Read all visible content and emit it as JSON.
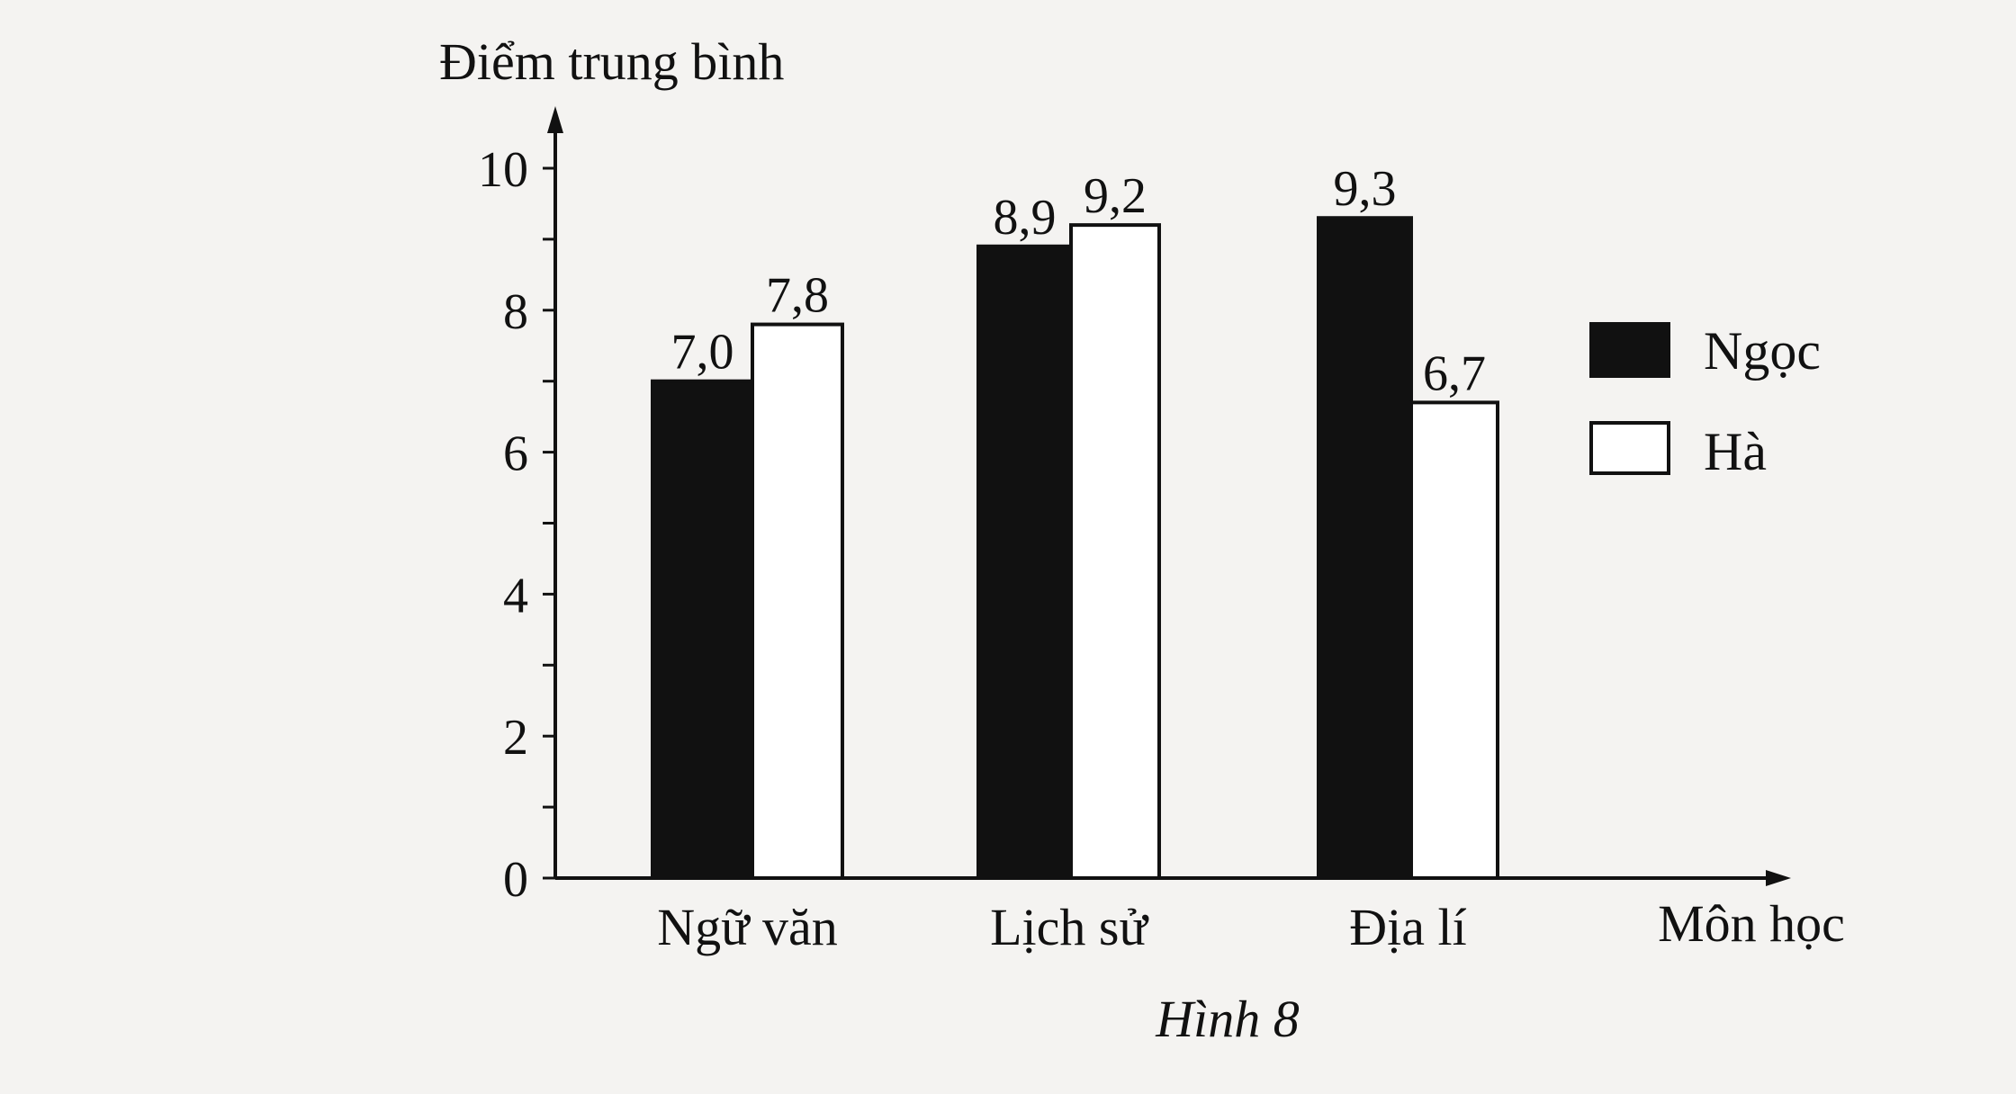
{
  "chart_data": {
    "type": "bar",
    "ylabel": "Điểm trung bình",
    "xlabel": "Môn học",
    "caption": "Hình 8",
    "categories": [
      "Ngữ văn",
      "Lịch sử",
      "Địa lí"
    ],
    "series": [
      {
        "name": "Ngọc",
        "values": [
          7.0,
          8.9,
          9.3
        ],
        "labels": [
          "7,0",
          "8,9",
          "9,3"
        ],
        "color": "#111111"
      },
      {
        "name": "Hà",
        "values": [
          7.8,
          9.2,
          6.7
        ],
        "labels": [
          "7,8",
          "9,2",
          "6,7"
        ],
        "color": "#ffffff"
      }
    ],
    "ylim": [
      0,
      10
    ],
    "yticks": [
      0,
      2,
      4,
      6,
      8,
      10
    ],
    "yticks_minor": [
      1,
      3,
      5,
      7,
      9
    ],
    "grid": false,
    "legend": "right"
  }
}
